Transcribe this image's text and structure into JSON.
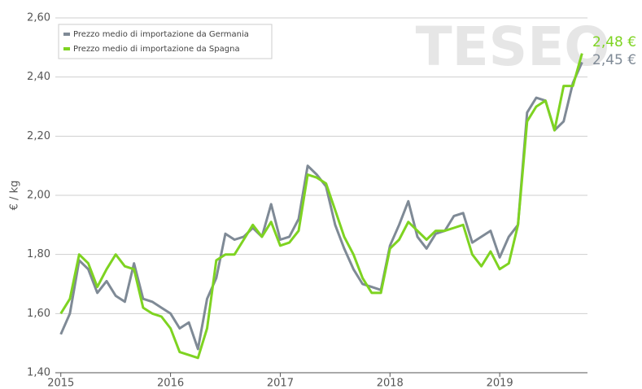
{
  "chart_data": {
    "type": "line",
    "y_label": "€ / kg",
    "watermark": "TESEO",
    "x": [
      2015,
      2015.083,
      2015.167,
      2015.25,
      2015.333,
      2015.417,
      2015.5,
      2015.583,
      2015.667,
      2015.75,
      2015.833,
      2015.917,
      2016,
      2016.083,
      2016.167,
      2016.25,
      2016.333,
      2016.417,
      2016.5,
      2016.583,
      2016.667,
      2016.75,
      2016.833,
      2016.917,
      2017,
      2017.083,
      2017.167,
      2017.25,
      2017.333,
      2017.417,
      2017.5,
      2017.583,
      2017.667,
      2017.75,
      2017.833,
      2017.917,
      2018,
      2018.083,
      2018.167,
      2018.25,
      2018.333,
      2018.417,
      2018.5,
      2018.583,
      2018.667,
      2018.75,
      2018.833,
      2018.917,
      2019,
      2019.083,
      2019.167,
      2019.25,
      2019.333,
      2019.417,
      2019.5,
      2019.583,
      2019.667,
      2019.75
    ],
    "series": [
      {
        "name": "Prezzo medio di importazione da Germania",
        "color": "#7f8a96",
        "values": [
          1.53,
          1.6,
          1.78,
          1.75,
          1.67,
          1.71,
          1.66,
          1.64,
          1.77,
          1.65,
          1.64,
          1.62,
          1.6,
          1.55,
          1.57,
          1.48,
          1.65,
          1.72,
          1.87,
          1.85,
          1.86,
          1.89,
          1.86,
          1.97,
          1.85,
          1.86,
          1.92,
          2.1,
          2.07,
          2.03,
          1.9,
          1.82,
          1.75,
          1.7,
          1.69,
          1.68,
          1.83,
          1.9,
          1.98,
          1.86,
          1.82,
          1.87,
          1.88,
          1.93,
          1.94,
          1.84,
          1.86,
          1.88,
          1.79,
          1.86,
          1.9,
          2.28,
          2.33,
          2.32,
          2.22,
          2.25,
          2.38,
          2.45
        ]
      },
      {
        "name": "Prezzo medio di importazione da Spagna",
        "color": "#7ed321",
        "values": [
          1.6,
          1.65,
          1.8,
          1.77,
          1.69,
          1.75,
          1.8,
          1.76,
          1.75,
          1.62,
          1.6,
          1.59,
          1.55,
          1.47,
          1.46,
          1.45,
          1.55,
          1.78,
          1.8,
          1.8,
          1.85,
          1.9,
          1.86,
          1.91,
          1.83,
          1.84,
          1.88,
          2.07,
          2.06,
          2.04,
          1.95,
          1.86,
          1.8,
          1.72,
          1.67,
          1.67,
          1.82,
          1.85,
          1.91,
          1.88,
          1.85,
          1.88,
          1.88,
          1.89,
          1.9,
          1.8,
          1.76,
          1.81,
          1.75,
          1.77,
          1.9,
          2.25,
          2.3,
          2.32,
          2.22,
          2.37,
          2.37,
          2.48
        ]
      }
    ],
    "annotations": [
      {
        "text": "2,48 €",
        "color": "#7ed321"
      },
      {
        "text": "2,45 €",
        "color": "#7f8a96"
      }
    ],
    "xlim": [
      2014.95,
      2019.8
    ],
    "xticks": [
      2015,
      2016,
      2017,
      2018,
      2019
    ],
    "ylim": [
      1.4,
      2.6
    ],
    "yticks": [
      {
        "value": 1.4,
        "label": "1,40"
      },
      {
        "value": 1.6,
        "label": "1,60"
      },
      {
        "value": 1.8,
        "label": "1,80"
      },
      {
        "value": 2.0,
        "label": "2,00"
      },
      {
        "value": 2.2,
        "label": "2,20"
      },
      {
        "value": 2.4,
        "label": "2,40"
      },
      {
        "value": 2.6,
        "label": "2,60"
      }
    ],
    "grid": true,
    "legend": "top-left"
  }
}
